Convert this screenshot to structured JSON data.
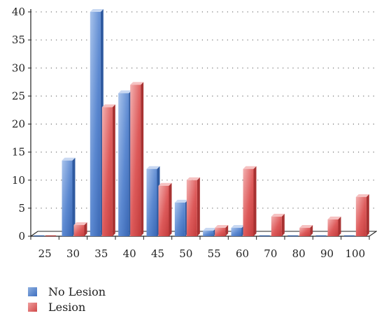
{
  "chart_data": {
    "type": "bar",
    "categories": [
      "25",
      "30",
      "35",
      "40",
      "45",
      "50",
      "55",
      "60",
      "70",
      "80",
      "90",
      "100"
    ],
    "series": [
      {
        "name": "No Lesion",
        "values": [
          0,
          13.5,
          40,
          25.5,
          12,
          6,
          1,
          1.5,
          0,
          0,
          0,
          0
        ],
        "color": "#4a7ac8"
      },
      {
        "name": "Lesion",
        "values": [
          0,
          2,
          23,
          27,
          9,
          10,
          1.5,
          12,
          3.5,
          1.5,
          3,
          7
        ],
        "color": "#d44c4c"
      }
    ],
    "yticks": [
      "0",
      "5",
      "10",
      "15",
      "20",
      "25",
      "30",
      "35",
      "40"
    ],
    "ylim": [
      0,
      40
    ],
    "grid": "dotted",
    "legend_position": "bottom-left",
    "title": "",
    "xlabel": "",
    "ylabel": ""
  }
}
